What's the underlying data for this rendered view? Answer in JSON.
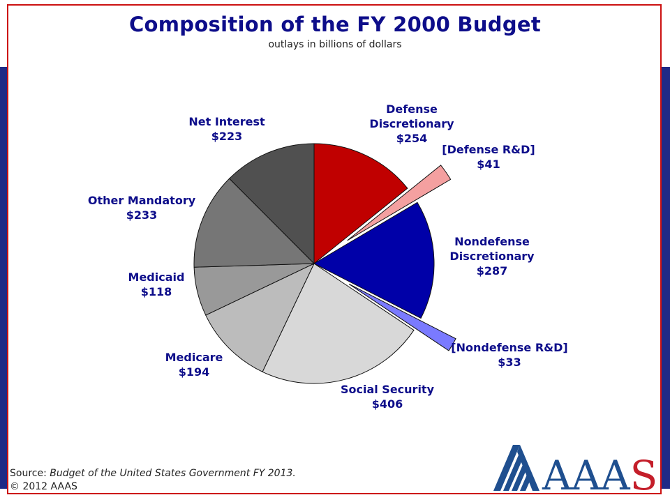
{
  "header": {
    "title": "Composition of the FY 2000 Budget",
    "subtitle": "outlays in billions of dollars"
  },
  "footer": {
    "source_prefix": "Source:",
    "source_title": "Budget of the United States Government FY 2013.",
    "copyright": "© 2012 AAAS"
  },
  "logo": {
    "text": "AAAS",
    "colors": {
      "stripes": "#1f4f8f",
      "text": "#1f4f8f",
      "accent_s": "#c41e2a"
    }
  },
  "colors": {
    "band": "#1f2a86",
    "frame": "#cc1111",
    "label": "#0d0d8a"
  },
  "chart_data": {
    "type": "pie",
    "title": "Composition of the FY 2000 Budget",
    "subtitle": "outlays in billions of dollars",
    "units": "billions of dollars",
    "slices": [
      {
        "label": "Defense Discretionary",
        "value": 254,
        "display": "$254",
        "color": "#c00000",
        "exploded": false
      },
      {
        "label": "[Defense R&D]",
        "value": 41,
        "display": "$41",
        "color": "#f4a0a0",
        "exploded": true
      },
      {
        "label": "Nondefense Discretionary",
        "value": 287,
        "display": "$287",
        "color": "#0000a8",
        "exploded": false
      },
      {
        "label": "[Nondefense R&D]",
        "value": 33,
        "display": "$33",
        "color": "#7a7aff",
        "exploded": true
      },
      {
        "label": "Social Security",
        "value": 406,
        "display": "$406",
        "color": "#d8d8d8",
        "exploded": false
      },
      {
        "label": "Medicare",
        "value": 194,
        "display": "$194",
        "color": "#bcbcbc",
        "exploded": false
      },
      {
        "label": "Medicaid",
        "value": 118,
        "display": "$118",
        "color": "#999999",
        "exploded": false
      },
      {
        "label": "Other Mandatory",
        "value": 233,
        "display": "$233",
        "color": "#767676",
        "exploded": false
      },
      {
        "label": "Net Interest",
        "value": 223,
        "display": "$223",
        "color": "#505050",
        "exploded": false
      }
    ]
  }
}
